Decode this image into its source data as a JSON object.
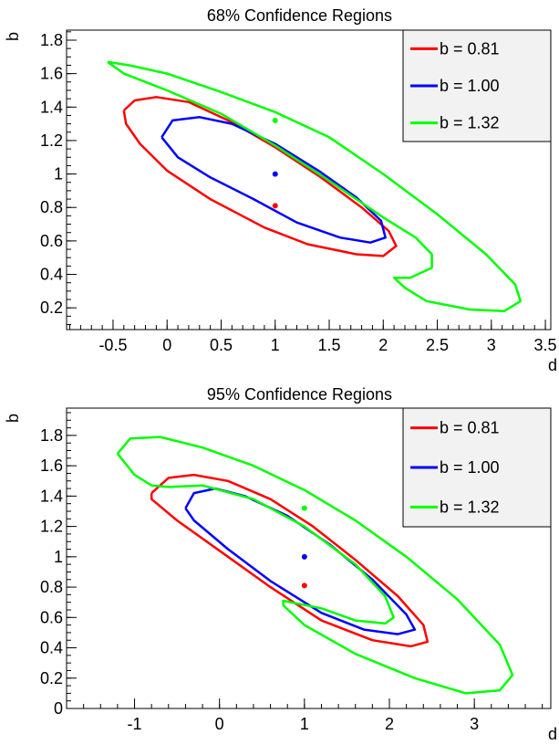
{
  "chart_data": [
    {
      "type": "line",
      "title": "68% Confidence Regions",
      "xlabel": "d",
      "ylabel": "b",
      "xlim": [
        -0.93,
        3.55
      ],
      "ylim": [
        0.07,
        1.86
      ],
      "xticks": [
        "-0.5",
        "0",
        "0.5",
        "1",
        "1.5",
        "2",
        "2.5",
        "3",
        "3.5"
      ],
      "yticks": [
        "0.2",
        "0.4",
        "0.6",
        "0.8",
        "1",
        "1.2",
        "1.4",
        "1.6",
        "1.8"
      ],
      "grid": false,
      "legend_position": "top-right",
      "series": [
        {
          "name": "b = 0.81",
          "color": "#ff0000",
          "center": {
            "x": 1.0,
            "y": 0.81
          },
          "contour": [
            [
              -0.4,
              1.38
            ],
            [
              -0.3,
              1.44
            ],
            [
              -0.1,
              1.46
            ],
            [
              0.2,
              1.43
            ],
            [
              0.6,
              1.31
            ],
            [
              1.0,
              1.16
            ],
            [
              1.4,
              0.99
            ],
            [
              1.8,
              0.8
            ],
            [
              2.05,
              0.66
            ],
            [
              2.12,
              0.57
            ],
            [
              2.0,
              0.51
            ],
            [
              1.75,
              0.52
            ],
            [
              1.3,
              0.58
            ],
            [
              0.9,
              0.68
            ],
            [
              0.4,
              0.85
            ],
            [
              0.0,
              1.02
            ],
            [
              -0.25,
              1.18
            ],
            [
              -0.38,
              1.3
            ],
            [
              -0.4,
              1.38
            ]
          ]
        },
        {
          "name": "b = 1.00",
          "color": "#0000ff",
          "center": {
            "x": 1.0,
            "y": 1.0
          },
          "contour": [
            [
              -0.05,
              1.22
            ],
            [
              0.05,
              1.32
            ],
            [
              0.3,
              1.34
            ],
            [
              0.6,
              1.3
            ],
            [
              1.0,
              1.18
            ],
            [
              1.4,
              1.02
            ],
            [
              1.75,
              0.86
            ],
            [
              1.98,
              0.72
            ],
            [
              2.02,
              0.62
            ],
            [
              1.88,
              0.59
            ],
            [
              1.6,
              0.62
            ],
            [
              1.2,
              0.71
            ],
            [
              0.8,
              0.85
            ],
            [
              0.4,
              0.98
            ],
            [
              0.1,
              1.1
            ],
            [
              -0.05,
              1.22
            ]
          ]
        },
        {
          "name": "b = 1.32",
          "color": "#00ff00",
          "center": {
            "x": 1.0,
            "y": 1.32
          },
          "contour": [
            [
              -0.55,
              1.67
            ],
            [
              -0.35,
              1.65
            ],
            [
              0.0,
              1.6
            ],
            [
              0.5,
              1.49
            ],
            [
              1.0,
              1.37
            ],
            [
              1.5,
              1.22
            ],
            [
              2.0,
              1.0
            ],
            [
              2.5,
              0.76
            ],
            [
              2.95,
              0.52
            ],
            [
              3.22,
              0.34
            ],
            [
              3.27,
              0.24
            ],
            [
              3.12,
              0.18
            ],
            [
              2.8,
              0.19
            ],
            [
              2.4,
              0.24
            ],
            [
              2.2,
              0.32
            ],
            [
              2.1,
              0.38
            ],
            [
              2.25,
              0.38
            ],
            [
              2.45,
              0.44
            ],
            [
              2.45,
              0.52
            ],
            [
              2.3,
              0.62
            ],
            [
              2.0,
              0.74
            ],
            [
              1.5,
              0.96
            ],
            [
              1.0,
              1.17
            ],
            [
              0.5,
              1.36
            ],
            [
              0.0,
              1.5
            ],
            [
              -0.4,
              1.6
            ],
            [
              -0.55,
              1.67
            ]
          ]
        }
      ]
    },
    {
      "type": "line",
      "title": "95% Confidence Regions",
      "xlabel": "d",
      "ylabel": "b",
      "xlim": [
        -1.8,
        3.9
      ],
      "ylim": [
        0.0,
        1.98
      ],
      "xticks": [
        "-1",
        "0",
        "1",
        "2",
        "3"
      ],
      "yticks": [
        "0",
        "0.2",
        "0.4",
        "0.6",
        "0.8",
        "1",
        "1.2",
        "1.4",
        "1.6",
        "1.8"
      ],
      "grid": false,
      "legend_position": "top-right",
      "series": [
        {
          "name": "b = 0.81",
          "color": "#ff0000",
          "center": {
            "x": 1.0,
            "y": 0.81
          },
          "contour": [
            [
              -0.8,
              1.42
            ],
            [
              -0.6,
              1.52
            ],
            [
              -0.3,
              1.54
            ],
            [
              0.1,
              1.5
            ],
            [
              0.6,
              1.38
            ],
            [
              1.1,
              1.2
            ],
            [
              1.6,
              0.98
            ],
            [
              2.1,
              0.74
            ],
            [
              2.4,
              0.55
            ],
            [
              2.45,
              0.44
            ],
            [
              2.25,
              0.41
            ],
            [
              1.8,
              0.45
            ],
            [
              1.2,
              0.58
            ],
            [
              0.6,
              0.8
            ],
            [
              0.0,
              1.04
            ],
            [
              -0.5,
              1.24
            ],
            [
              -0.8,
              1.38
            ],
            [
              -0.8,
              1.42
            ]
          ]
        },
        {
          "name": "b = 1.00",
          "color": "#0000ff",
          "center": {
            "x": 1.0,
            "y": 1.0
          },
          "contour": [
            [
              -0.4,
              1.32
            ],
            [
              -0.3,
              1.42
            ],
            [
              -0.05,
              1.45
            ],
            [
              0.3,
              1.4
            ],
            [
              0.8,
              1.27
            ],
            [
              1.3,
              1.08
            ],
            [
              1.8,
              0.85
            ],
            [
              2.2,
              0.62
            ],
            [
              2.3,
              0.52
            ],
            [
              2.1,
              0.49
            ],
            [
              1.7,
              0.52
            ],
            [
              1.2,
              0.63
            ],
            [
              0.6,
              0.84
            ],
            [
              0.1,
              1.05
            ],
            [
              -0.3,
              1.24
            ],
            [
              -0.4,
              1.32
            ]
          ]
        },
        {
          "name": "b = 1.32",
          "color": "#00ff00",
          "center": {
            "x": 1.0,
            "y": 1.32
          },
          "contour": [
            [
              -1.2,
              1.68
            ],
            [
              -1.05,
              1.78
            ],
            [
              -0.7,
              1.79
            ],
            [
              -0.2,
              1.72
            ],
            [
              0.4,
              1.6
            ],
            [
              1.0,
              1.44
            ],
            [
              1.6,
              1.24
            ],
            [
              2.2,
              1.0
            ],
            [
              2.8,
              0.72
            ],
            [
              3.3,
              0.42
            ],
            [
              3.45,
              0.22
            ],
            [
              3.3,
              0.12
            ],
            [
              2.9,
              0.1
            ],
            [
              2.3,
              0.2
            ],
            [
              1.6,
              0.36
            ],
            [
              1.0,
              0.55
            ],
            [
              0.75,
              0.68
            ],
            [
              0.75,
              0.71
            ],
            [
              1.2,
              0.66
            ],
            [
              1.6,
              0.58
            ],
            [
              1.95,
              0.56
            ],
            [
              2.05,
              0.6
            ],
            [
              1.95,
              0.74
            ],
            [
              1.6,
              0.95
            ],
            [
              1.0,
              1.2
            ],
            [
              0.4,
              1.38
            ],
            [
              -0.2,
              1.47
            ],
            [
              -0.6,
              1.46
            ],
            [
              -0.8,
              1.47
            ],
            [
              -1.0,
              1.54
            ],
            [
              -1.2,
              1.68
            ]
          ]
        }
      ]
    }
  ]
}
